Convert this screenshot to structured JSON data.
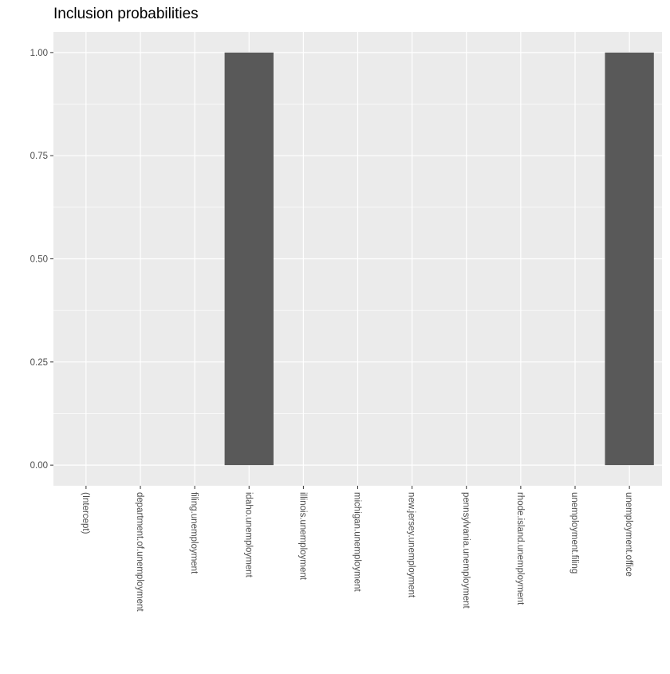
{
  "chart_data": {
    "type": "bar",
    "title": "Inclusion probabilities",
    "xlabel": "",
    "ylabel": "",
    "categories": [
      "(Intercept)",
      "department.of.unemployment",
      "filing.unemployment",
      "idaho.unemployment",
      "illinois.unemployment",
      "michigan.unemployment",
      "new.jersey.unemployment",
      "pennsylvania.unemployment",
      "rhode.island.unemployment",
      "unemployment.filing",
      "unemployment.office"
    ],
    "values": [
      0,
      0,
      0,
      1,
      0,
      0,
      0,
      0,
      0,
      0,
      1
    ],
    "ylim": [
      -0.05,
      1.05
    ],
    "yticks": [
      0.0,
      0.25,
      0.5,
      0.75,
      1.0
    ],
    "ytick_labels": [
      "0.00",
      "0.25",
      "0.50",
      "0.75",
      "1.00"
    ],
    "grid": true,
    "colors": {
      "panel_background": "#EBEBEB",
      "grid_major": "#FFFFFF",
      "bar_fill": "#595959",
      "axis_text": "#4D4D4D",
      "tick": "#333333"
    }
  }
}
